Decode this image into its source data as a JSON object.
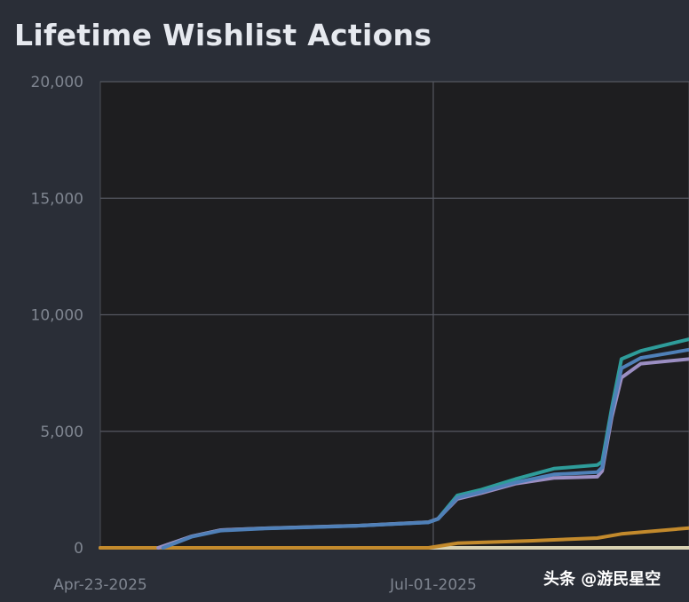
{
  "chart_data": {
    "type": "line",
    "title": "Lifetime Wishlist Actions",
    "xlabel": "",
    "ylabel": "",
    "ylim": [
      0,
      20000
    ],
    "xlim": [
      "2025-04-23",
      "2025-08-23"
    ],
    "grid": true,
    "y_ticks": [
      "0",
      "5,000",
      "10,000",
      "15,000",
      "20,000"
    ],
    "y_tick_values": [
      0,
      5000,
      10000,
      15000,
      20000
    ],
    "x_ticks": [
      "Apr-23-2025",
      "Jul-01-2025"
    ],
    "x_tick_values": [
      "2025-04-23",
      "2025-07-01"
    ],
    "series": [
      {
        "color": "#2e9c9a",
        "points": [
          [
            "2025-05-05",
            0
          ],
          [
            "2025-05-12",
            500
          ],
          [
            "2025-05-18",
            760
          ],
          [
            "2025-05-27",
            840
          ],
          [
            "2025-06-15",
            950
          ],
          [
            "2025-06-30",
            1100
          ],
          [
            "2025-07-02",
            1250
          ],
          [
            "2025-07-06",
            2250
          ],
          [
            "2025-07-11",
            2500
          ],
          [
            "2025-07-18",
            2950
          ],
          [
            "2025-07-26",
            3400
          ],
          [
            "2025-08-04",
            3550
          ],
          [
            "2025-08-05",
            3700
          ],
          [
            "2025-08-07",
            6000
          ],
          [
            "2025-08-09",
            8100
          ],
          [
            "2025-08-13",
            8450
          ],
          [
            "2025-08-23",
            8950
          ]
        ]
      },
      {
        "color": "#9b8ec2",
        "points": [
          [
            "2025-05-05",
            0
          ],
          [
            "2025-05-12",
            500
          ],
          [
            "2025-05-18",
            760
          ],
          [
            "2025-05-27",
            840
          ],
          [
            "2025-06-15",
            950
          ],
          [
            "2025-06-30",
            1100
          ],
          [
            "2025-07-02",
            1250
          ],
          [
            "2025-07-06",
            2100
          ],
          [
            "2025-07-11",
            2350
          ],
          [
            "2025-07-18",
            2750
          ],
          [
            "2025-07-26",
            3000
          ],
          [
            "2025-08-04",
            3050
          ],
          [
            "2025-08-05",
            3300
          ],
          [
            "2025-08-07",
            5600
          ],
          [
            "2025-08-09",
            7300
          ],
          [
            "2025-08-13",
            7900
          ],
          [
            "2025-08-23",
            8100
          ]
        ]
      },
      {
        "color": "#4f80b8",
        "points": [
          [
            "2025-05-06",
            0
          ],
          [
            "2025-05-12",
            480
          ],
          [
            "2025-05-18",
            740
          ],
          [
            "2025-05-27",
            830
          ],
          [
            "2025-06-15",
            940
          ],
          [
            "2025-06-30",
            1090
          ],
          [
            "2025-07-02",
            1240
          ],
          [
            "2025-07-06",
            2150
          ],
          [
            "2025-07-11",
            2400
          ],
          [
            "2025-07-18",
            2800
          ],
          [
            "2025-07-26",
            3150
          ],
          [
            "2025-08-04",
            3250
          ],
          [
            "2025-08-05",
            3450
          ],
          [
            "2025-08-07",
            5800
          ],
          [
            "2025-08-09",
            7700
          ],
          [
            "2025-08-13",
            8150
          ],
          [
            "2025-08-23",
            8500
          ]
        ]
      },
      {
        "color": "#c38a2c",
        "points": [
          [
            "2025-04-23",
            0
          ],
          [
            "2025-06-30",
            0
          ],
          [
            "2025-07-06",
            200
          ],
          [
            "2025-07-21",
            300
          ],
          [
            "2025-08-04",
            420
          ],
          [
            "2025-08-09",
            600
          ],
          [
            "2025-08-23",
            850
          ]
        ]
      },
      {
        "color": "#d9d2b2",
        "points": [
          [
            "2025-04-23",
            0
          ],
          [
            "2025-08-23",
            0
          ]
        ]
      }
    ]
  },
  "watermark": "头条 @游民星空"
}
